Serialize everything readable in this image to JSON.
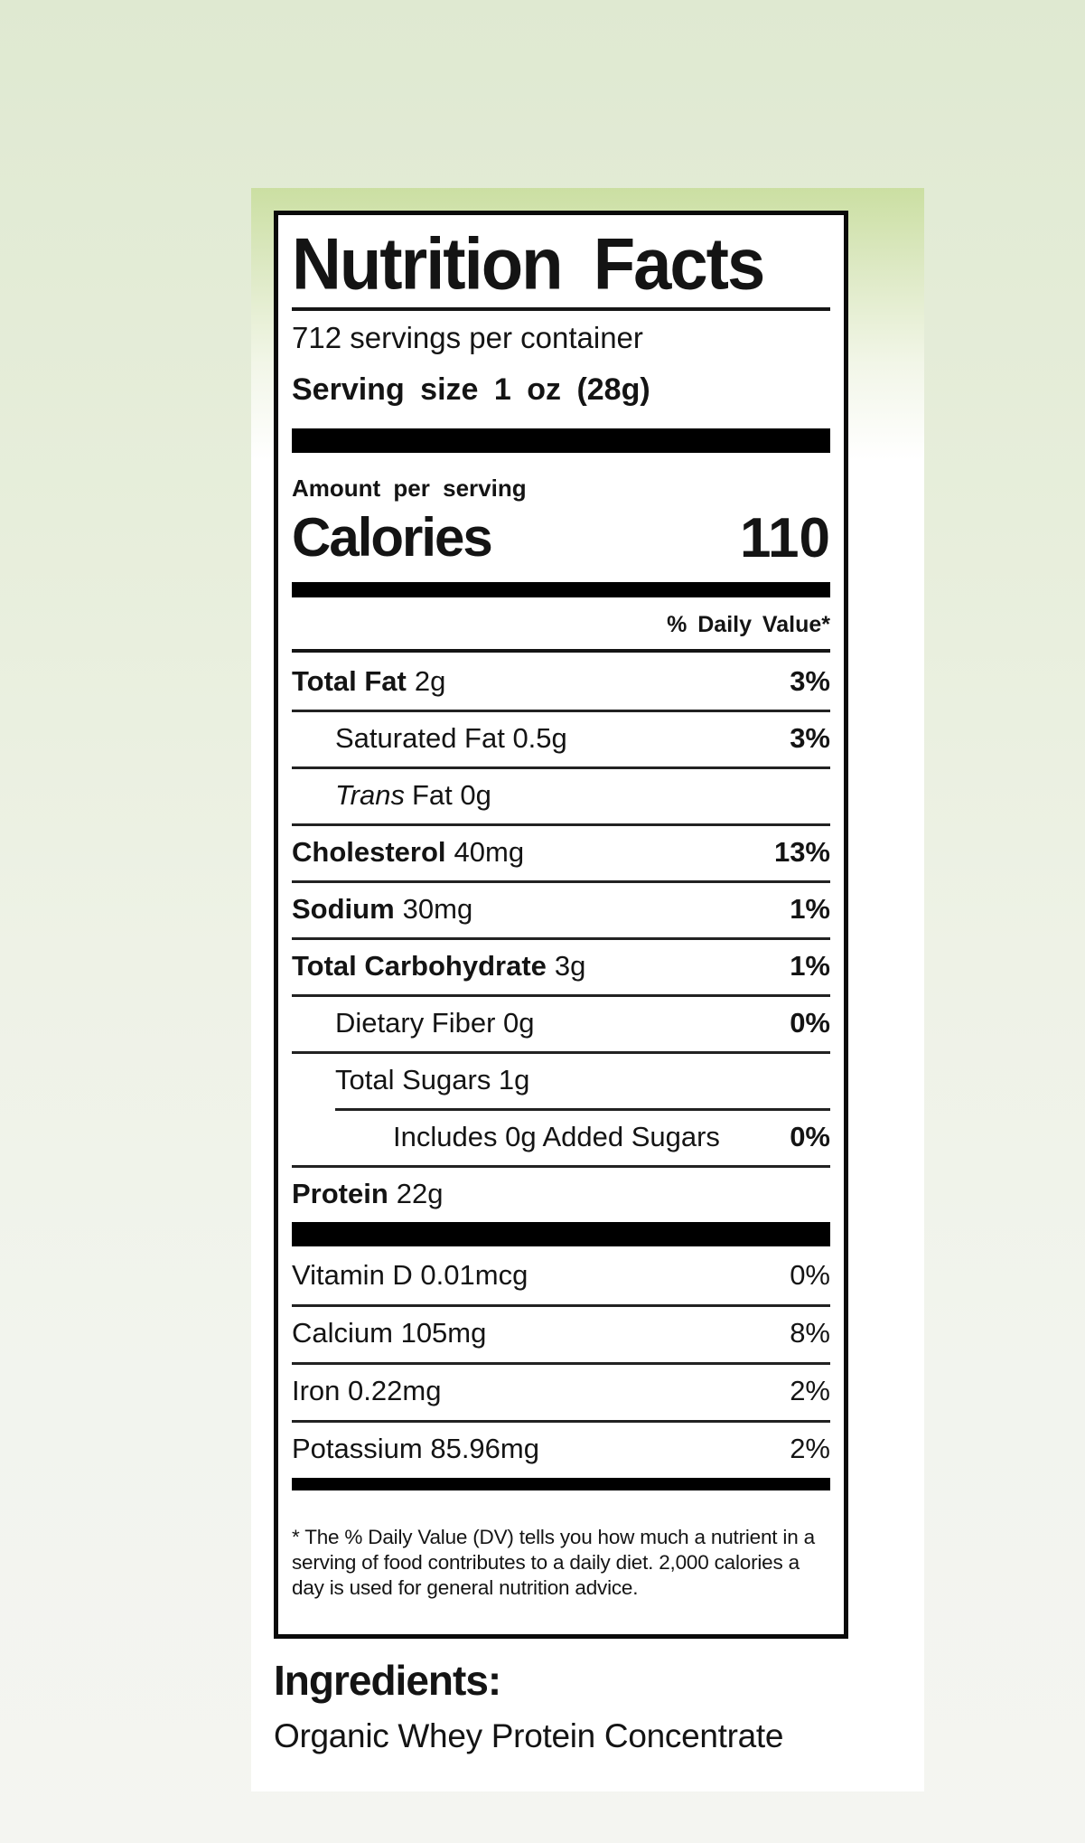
{
  "colors": {
    "page_background_top": "#dfe9d1",
    "page_background_bottom": "#f4f5f1",
    "card_green_top": "#cbdfa2",
    "label_ink": "#0a0a0a"
  },
  "label": {
    "title": "Nutrition Facts",
    "servings_per_container": "712 servings per container",
    "serving_size": "Serving size 1 oz (28g)",
    "amount_per_serving": "Amount per serving",
    "calories_label": "Calories",
    "calories_value": "110",
    "daily_value_header": "% Daily Value*",
    "rows": [
      {
        "bold": "Total Fat",
        "italic": "",
        "regular": "2g",
        "percent": "3%"
      },
      {
        "bold": "",
        "italic": "",
        "regular": "Saturated Fat 0.5g",
        "percent": "3%"
      },
      {
        "bold": "",
        "italic": "Trans",
        "regular": "Fat 0g",
        "percent": ""
      },
      {
        "bold": "Cholesterol",
        "italic": "",
        "regular": "40mg",
        "percent": "13%"
      },
      {
        "bold": "Sodium",
        "italic": "",
        "regular": "30mg",
        "percent": "1%"
      },
      {
        "bold": "Total Carbohydrate",
        "italic": "",
        "regular": "3g",
        "percent": "1%"
      },
      {
        "bold": "",
        "italic": "",
        "regular": "Dietary Fiber 0g",
        "percent": "0%"
      },
      {
        "bold": "",
        "italic": "",
        "regular": "Total Sugars 1g",
        "percent": ""
      },
      {
        "bold": "",
        "italic": "",
        "regular": "Includes 0g Added Sugars",
        "percent": "0%"
      },
      {
        "bold": "Protein",
        "italic": "",
        "regular": "22g",
        "percent": ""
      }
    ],
    "micronutrients": [
      {
        "name": "Vitamin D 0.01mcg",
        "percent": "0%"
      },
      {
        "name": "Calcium 105mg",
        "percent": "8%"
      },
      {
        "name": "Iron 0.22mg",
        "percent": "2%"
      },
      {
        "name": "Potassium 85.96mg",
        "percent": "2%"
      }
    ],
    "footnote": "* The % Daily Value (DV) tells you how much a nutrient in a serving of food contributes to a daily diet. 2,000 calories a day is used for general nutrition advice."
  },
  "ingredients": {
    "heading": "Ingredients:",
    "value": "Organic Whey Protein Concentrate"
  }
}
